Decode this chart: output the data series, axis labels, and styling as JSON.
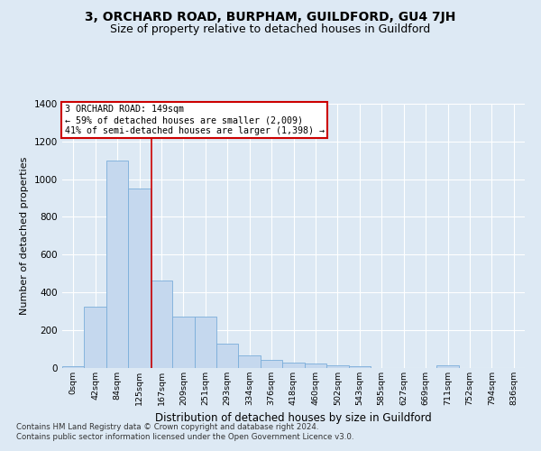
{
  "title": "3, ORCHARD ROAD, BURPHAM, GUILDFORD, GU4 7JH",
  "subtitle": "Size of property relative to detached houses in Guildford",
  "xlabel": "Distribution of detached houses by size in Guildford",
  "ylabel": "Number of detached properties",
  "categories": [
    "0sqm",
    "42sqm",
    "84sqm",
    "125sqm",
    "167sqm",
    "209sqm",
    "251sqm",
    "293sqm",
    "334sqm",
    "376sqm",
    "418sqm",
    "460sqm",
    "502sqm",
    "543sqm",
    "585sqm",
    "627sqm",
    "669sqm",
    "711sqm",
    "752sqm",
    "794sqm",
    "836sqm"
  ],
  "bar_heights": [
    8,
    325,
    1100,
    950,
    460,
    270,
    270,
    125,
    65,
    40,
    25,
    20,
    10,
    5,
    0,
    0,
    0,
    10,
    0,
    0,
    0
  ],
  "bar_color": "#c5d8ee",
  "bar_edge_color": "#7aadda",
  "vline_color": "#cc0000",
  "vline_x_index": 3.57,
  "annotation_line0": "3 ORCHARD ROAD: 149sqm",
  "annotation_line1": "← 59% of detached houses are smaller (2,009)",
  "annotation_line2": "41% of semi-detached houses are larger (1,398) →",
  "annotation_box_facecolor": "white",
  "annotation_box_edgecolor": "#cc0000",
  "ylim": [
    0,
    1400
  ],
  "yticks": [
    0,
    200,
    400,
    600,
    800,
    1000,
    1200,
    1400
  ],
  "bg_color": "#dde9f4",
  "plot_bg_color": "#dde9f4",
  "title_fontsize": 10,
  "subtitle_fontsize": 9,
  "ylabel_fontsize": 8,
  "xlabel_fontsize": 8.5,
  "footer_line1": "Contains HM Land Registry data © Crown copyright and database right 2024.",
  "footer_line2": "Contains public sector information licensed under the Open Government Licence v3.0."
}
